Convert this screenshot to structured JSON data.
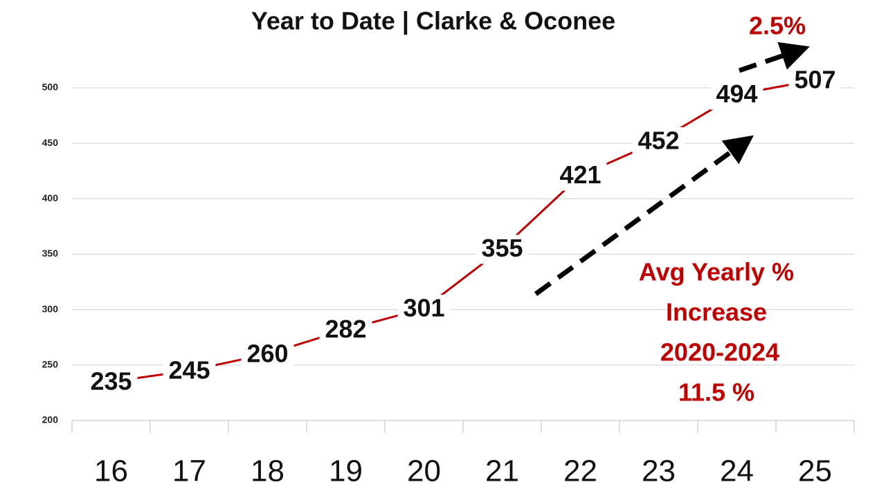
{
  "chart_data": {
    "type": "line",
    "title": "Year to Date | Clarke & Oconee",
    "categories": [
      "16",
      "17",
      "18",
      "19",
      "20",
      "21",
      "22",
      "23",
      "24",
      "25"
    ],
    "values": [
      235,
      245,
      260,
      282,
      301,
      355,
      421,
      452,
      494,
      507
    ],
    "color": "#c00000",
    "ylim": [
      200,
      500
    ],
    "yticks": [
      200,
      250,
      300,
      350,
      400,
      450,
      500
    ],
    "grid": true,
    "annotations": [
      "2.5%",
      "Avg Yearly %",
      "Increase",
      "2020-2024",
      "11.5 %"
    ]
  }
}
